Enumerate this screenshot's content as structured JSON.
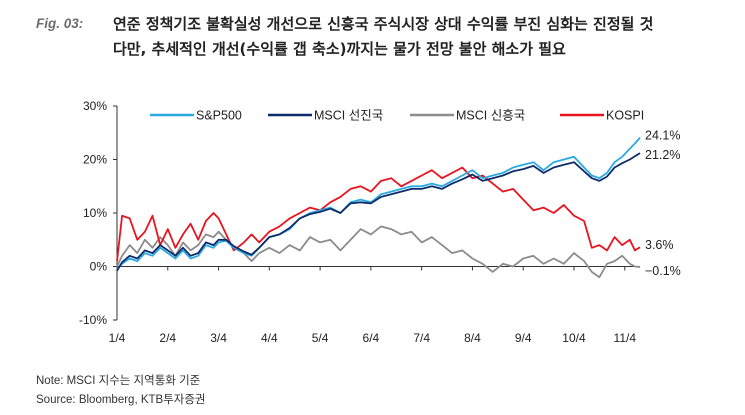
{
  "figure": {
    "label": "Fig. 03:",
    "title_line1": "연준 정책기조 불확실성 개선으로 신흥국 주식시장 상대 수익률 부진 심화는 진정될 것",
    "title_line2": "다만, 추세적인 개선(수익률 갭 축소)까지는 물가 전망 불안 해소가 필요",
    "note": "Note: MSCI 지수는 지역통화 기준",
    "source": "Source: Bloomberg, KTB투자증권"
  },
  "chart_data": {
    "type": "line",
    "title": "",
    "xlabel": "",
    "ylabel": "",
    "ylim": [
      -10,
      30
    ],
    "yticks": [
      -10,
      0,
      10,
      20,
      30
    ],
    "ytick_labels": [
      "-10%",
      "0%",
      "10%",
      "20%",
      "30%"
    ],
    "xlim": [
      0,
      10.3
    ],
    "xticks": [
      0,
      1,
      2,
      3,
      4,
      5,
      6,
      7,
      8,
      9,
      10
    ],
    "xtick_labels": [
      "1/4",
      "2/4",
      "3/4",
      "4/4",
      "5/4",
      "6/4",
      "7/4",
      "8/4",
      "9/4",
      "10/4",
      "11/4"
    ],
    "grid": false,
    "legend": "top",
    "series": [
      {
        "name": "S&P500",
        "color": "#2aaae2",
        "end_label": "24.1%",
        "x": [
          0,
          0.1,
          0.25,
          0.4,
          0.55,
          0.7,
          0.85,
          1.0,
          1.15,
          1.3,
          1.45,
          1.6,
          1.75,
          1.9,
          2.0,
          2.15,
          2.3,
          2.5,
          2.65,
          2.8,
          3.0,
          3.2,
          3.4,
          3.6,
          3.8,
          4.0,
          4.2,
          4.4,
          4.6,
          4.8,
          5.0,
          5.2,
          5.4,
          5.6,
          5.8,
          6.0,
          6.2,
          6.4,
          6.6,
          6.8,
          7.0,
          7.2,
          7.4,
          7.6,
          7.8,
          8.0,
          8.2,
          8.4,
          8.6,
          8.8,
          9.0,
          9.2,
          9.35,
          9.5,
          9.65,
          9.8,
          9.95,
          10.1,
          10.2,
          10.3
        ],
        "y": [
          -0.5,
          0.5,
          1.5,
          1.0,
          2.5,
          2.0,
          3.5,
          2.5,
          1.5,
          3.0,
          1.5,
          2.0,
          4.0,
          3.5,
          4.5,
          4.8,
          3.5,
          2.5,
          2.0,
          3.5,
          5.5,
          6.0,
          7.0,
          9.0,
          10.0,
          10.5,
          11.0,
          10.0,
          12.0,
          12.5,
          12.0,
          13.5,
          14.0,
          14.5,
          15.0,
          15.0,
          15.5,
          15.0,
          16.0,
          17.0,
          18.0,
          16.5,
          17.0,
          17.5,
          18.5,
          19.0,
          19.5,
          18.0,
          19.5,
          20.0,
          20.5,
          18.5,
          17.0,
          16.5,
          17.5,
          19.5,
          20.5,
          22.0,
          23.0,
          24.1
        ]
      },
      {
        "name": "MSCI 선진국",
        "color": "#0d2c6b",
        "end_label": "21.2%",
        "x": [
          0,
          0.1,
          0.25,
          0.4,
          0.55,
          0.7,
          0.85,
          1.0,
          1.15,
          1.3,
          1.45,
          1.6,
          1.75,
          1.9,
          2.0,
          2.15,
          2.3,
          2.5,
          2.65,
          2.8,
          3.0,
          3.2,
          3.4,
          3.6,
          3.8,
          4.0,
          4.2,
          4.4,
          4.6,
          4.8,
          5.0,
          5.2,
          5.4,
          5.6,
          5.8,
          6.0,
          6.2,
          6.4,
          6.6,
          6.8,
          7.0,
          7.2,
          7.4,
          7.6,
          7.8,
          8.0,
          8.2,
          8.4,
          8.6,
          8.8,
          9.0,
          9.2,
          9.35,
          9.5,
          9.65,
          9.8,
          9.95,
          10.1,
          10.2,
          10.3
        ],
        "y": [
          -0.8,
          0.8,
          2.0,
          1.5,
          3.0,
          2.5,
          4.0,
          3.0,
          2.0,
          3.5,
          2.0,
          2.5,
          4.5,
          4.0,
          5.0,
          5.0,
          3.8,
          2.8,
          2.2,
          3.5,
          5.5,
          6.0,
          7.2,
          9.0,
          9.8,
          10.2,
          10.8,
          10.0,
          11.8,
          12.0,
          11.8,
          13.0,
          13.5,
          14.0,
          14.5,
          14.5,
          15.0,
          14.5,
          15.5,
          16.3,
          17.2,
          16.0,
          16.5,
          17.0,
          17.8,
          18.2,
          18.8,
          17.5,
          18.5,
          19.0,
          19.5,
          17.8,
          16.5,
          16.0,
          16.8,
          18.5,
          19.3,
          20.0,
          20.6,
          21.2
        ]
      },
      {
        "name": "MSCI 신흥국",
        "color": "#8c8c8c",
        "end_label": "−0.1%",
        "x": [
          0,
          0.1,
          0.25,
          0.4,
          0.55,
          0.7,
          0.85,
          1.0,
          1.15,
          1.3,
          1.45,
          1.6,
          1.75,
          1.9,
          2.0,
          2.15,
          2.3,
          2.5,
          2.65,
          2.8,
          3.0,
          3.2,
          3.4,
          3.6,
          3.8,
          4.0,
          4.2,
          4.4,
          4.6,
          4.8,
          5.0,
          5.2,
          5.4,
          5.6,
          5.8,
          6.0,
          6.2,
          6.4,
          6.6,
          6.8,
          7.0,
          7.2,
          7.4,
          7.6,
          7.8,
          8.0,
          8.2,
          8.4,
          8.6,
          8.8,
          9.0,
          9.2,
          9.35,
          9.5,
          9.65,
          9.8,
          9.95,
          10.1,
          10.2,
          10.3
        ],
        "y": [
          0.0,
          2.0,
          4.0,
          2.5,
          5.0,
          3.5,
          5.5,
          4.0,
          2.0,
          4.5,
          3.0,
          4.0,
          6.0,
          5.5,
          6.5,
          5.0,
          3.5,
          2.5,
          1.0,
          2.5,
          3.5,
          2.5,
          4.0,
          3.0,
          5.5,
          4.5,
          5.0,
          3.0,
          5.0,
          7.0,
          6.0,
          7.5,
          7.0,
          6.0,
          6.5,
          4.5,
          5.5,
          4.0,
          2.5,
          3.0,
          1.5,
          0.5,
          -1.0,
          0.5,
          0.0,
          1.5,
          2.0,
          0.5,
          1.5,
          0.5,
          2.5,
          1.0,
          -1.0,
          -2.0,
          0.5,
          1.0,
          2.0,
          0.5,
          0.0,
          -0.1
        ]
      },
      {
        "name": "KOSPI",
        "color": "#e8141e",
        "end_label": "3.6%",
        "x": [
          0,
          0.1,
          0.25,
          0.4,
          0.55,
          0.7,
          0.85,
          1.0,
          1.15,
          1.3,
          1.45,
          1.6,
          1.75,
          1.9,
          2.0,
          2.15,
          2.3,
          2.5,
          2.65,
          2.8,
          3.0,
          3.2,
          3.4,
          3.6,
          3.8,
          4.0,
          4.2,
          4.4,
          4.6,
          4.8,
          5.0,
          5.2,
          5.4,
          5.6,
          5.8,
          6.0,
          6.2,
          6.4,
          6.6,
          6.8,
          7.0,
          7.2,
          7.4,
          7.6,
          7.8,
          8.0,
          8.2,
          8.4,
          8.6,
          8.8,
          9.0,
          9.2,
          9.35,
          9.5,
          9.65,
          9.8,
          9.95,
          10.1,
          10.2,
          10.3
        ],
        "y": [
          1.0,
          9.5,
          9.0,
          5.0,
          6.5,
          9.5,
          4.0,
          7.0,
          3.5,
          6.0,
          8.0,
          5.0,
          8.5,
          10.0,
          9.0,
          6.0,
          3.0,
          4.5,
          6.0,
          4.5,
          6.5,
          7.5,
          9.0,
          10.0,
          11.0,
          10.5,
          12.0,
          13.0,
          14.5,
          15.0,
          14.0,
          16.0,
          16.5,
          15.0,
          16.0,
          17.0,
          18.0,
          16.5,
          17.5,
          18.5,
          16.5,
          17.0,
          15.5,
          14.0,
          14.5,
          12.5,
          10.5,
          11.0,
          10.0,
          11.5,
          9.5,
          8.5,
          3.5,
          4.0,
          3.0,
          5.5,
          4.0,
          5.0,
          3.0,
          3.6
        ]
      }
    ]
  }
}
